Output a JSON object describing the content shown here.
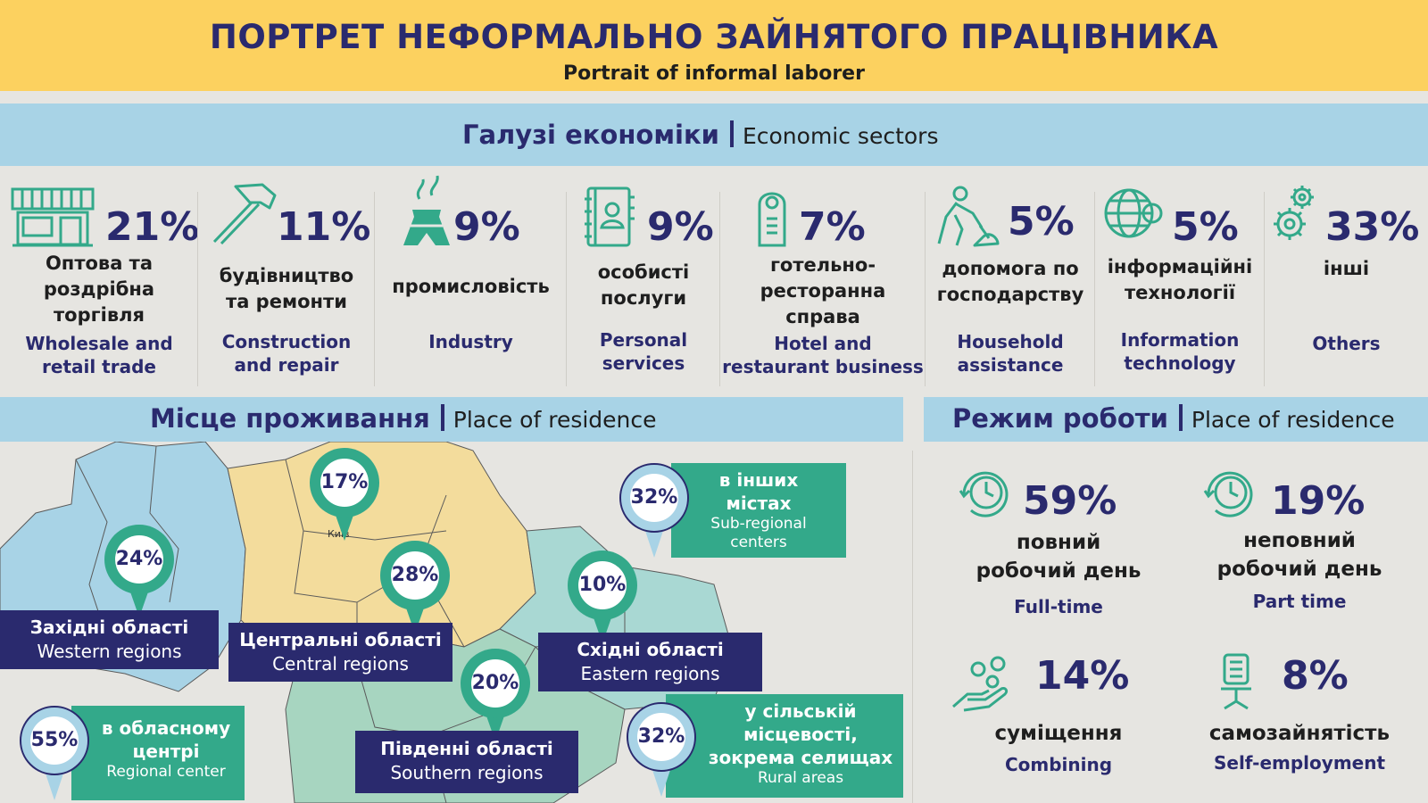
{
  "header": {
    "title": "ПОРТРЕТ НЕФОРМАЛЬНО ЗАЙНЯТОГО ПРАЦІВНИКА",
    "subtitle": "Portrait of informal laborer"
  },
  "sectors_section": {
    "title_ua": "Галузі економіки",
    "title_en": "Economic sectors"
  },
  "sectors": [
    {
      "pct": "21%",
      "ua": [
        "Оптова та",
        "роздрібна",
        "торгівля"
      ],
      "en": [
        "Wholesale and",
        "retail trade"
      ],
      "icon": "shop-icon"
    },
    {
      "pct": "11%",
      "ua": [
        "будівництво",
        "та ремонти"
      ],
      "en": [
        "Construction",
        "and repair"
      ],
      "icon": "hammer-icon"
    },
    {
      "pct": "9%",
      "ua": [
        "промисловість"
      ],
      "en": [
        "Industry"
      ],
      "icon": "factory-icon"
    },
    {
      "pct": "9%",
      "ua": [
        "особисті",
        "послуги"
      ],
      "en": [
        "Personal",
        "services"
      ],
      "icon": "contact-book-icon"
    },
    {
      "pct": "7%",
      "ua": [
        "готельно-",
        "ресторанна",
        "справа"
      ],
      "en": [
        "Hotel and",
        "restaurant business"
      ],
      "icon": "door-hanger-icon"
    },
    {
      "pct": "5%",
      "ua": [
        "допомога по",
        "господарству"
      ],
      "en": [
        "Household",
        "assistance"
      ],
      "icon": "shovel-worker-icon"
    },
    {
      "pct": "5%",
      "ua": [
        "інформаційні",
        "технології"
      ],
      "en": [
        "Information",
        "technology"
      ],
      "icon": "globe-gear-icon"
    },
    {
      "pct": "33%",
      "ua": [
        "інші"
      ],
      "en": [
        "Others"
      ],
      "icon": "gears-icon"
    }
  ],
  "residence_section": {
    "title_ua": "Місце проживання",
    "title_en": "Place of residence"
  },
  "map": {
    "city_label": "Київ"
  },
  "regions": {
    "western": {
      "pct": "24%",
      "ua": "Західні області",
      "en": "Western regions"
    },
    "central": {
      "pct": "28%",
      "ua": "Центральні області",
      "en": "Central regions"
    },
    "eastern": {
      "pct": "10%",
      "ua": "Східні області",
      "en": "Eastern regions"
    },
    "southern": {
      "pct": "20%",
      "ua": "Південні області",
      "en": "Southern regions"
    },
    "kyiv": {
      "pct": "17%"
    }
  },
  "settlements": {
    "subregional": {
      "pct": "32%",
      "ua": [
        "в інших",
        "містах"
      ],
      "en": [
        "Sub-regional",
        "centers"
      ]
    },
    "regional": {
      "pct": "55%",
      "ua": [
        "в обласному",
        "центрі"
      ],
      "en": [
        "Regional center"
      ]
    },
    "rural": {
      "pct": "32%",
      "ua": [
        "у сільській",
        "місцевості,",
        "зокрема селищах"
      ],
      "en": [
        "Rural areas"
      ]
    }
  },
  "mode_section": {
    "title_ua": "Режим роботи",
    "title_en": "Place of residence"
  },
  "work_modes": [
    {
      "pct": "59%",
      "ua": [
        "повний",
        "робочий день"
      ],
      "en": "Full-time",
      "icon": "clock-cycle-icon"
    },
    {
      "pct": "19%",
      "ua": [
        "неповний",
        "робочий день"
      ],
      "en": "Part time",
      "icon": "clock-cycle-icon"
    },
    {
      "pct": "14%",
      "ua": [
        "суміщення"
      ],
      "en": "Combining",
      "icon": "hand-people-icon"
    },
    {
      "pct": "8%",
      "ua": [
        "самозайнятість"
      ],
      "en": "Self-employment",
      "icon": "office-chair-icon"
    }
  ],
  "colors": {
    "header_bg": "#fcd15f",
    "band_bg": "#a8d3e6",
    "navy": "#2a2a6e",
    "green": "#33a98a",
    "map_west": "#a8d3e6",
    "map_central": "#f3dc9c",
    "map_east": "#a9d8d3",
    "map_south": "#a7d5c0",
    "pin_light": "#a8d3e6"
  }
}
